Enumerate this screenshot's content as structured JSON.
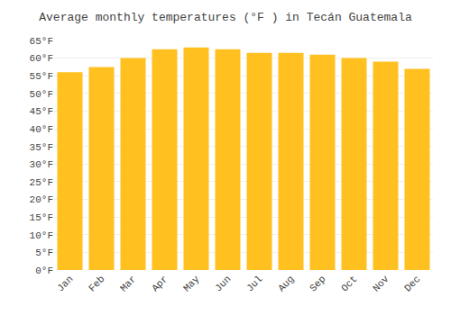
{
  "chart_data": {
    "type": "bar",
    "title": "Average monthly temperatures (°F ) in Tecán Guatemala",
    "categories": [
      "Jan",
      "Feb",
      "Mar",
      "Apr",
      "May",
      "Jun",
      "Jul",
      "Aug",
      "Sep",
      "Oct",
      "Nov",
      "Dec"
    ],
    "values": [
      56.0,
      57.5,
      60.0,
      62.5,
      63.0,
      62.5,
      61.5,
      61.5,
      61.0,
      60.0,
      59.0,
      57.0
    ],
    "color": "#FFC020",
    "ylim": [
      0,
      65
    ],
    "yticks": [
      {
        "value": 0,
        "label": "0°F"
      },
      {
        "value": 5,
        "label": "5°F"
      },
      {
        "value": 10,
        "label": "10°F"
      },
      {
        "value": 15,
        "label": "15°F"
      },
      {
        "value": 20,
        "label": "20°F"
      },
      {
        "value": 25,
        "label": "25°F"
      },
      {
        "value": 30,
        "label": "30°F"
      },
      {
        "value": 35,
        "label": "35°F"
      },
      {
        "value": 40,
        "label": "40°F"
      },
      {
        "value": 45,
        "label": "45°F"
      },
      {
        "value": 50,
        "label": "50°F"
      },
      {
        "value": 55,
        "label": "55°F"
      },
      {
        "value": 60,
        "label": "60°F"
      },
      {
        "value": 65,
        "label": "65°F"
      }
    ],
    "grid": true
  }
}
